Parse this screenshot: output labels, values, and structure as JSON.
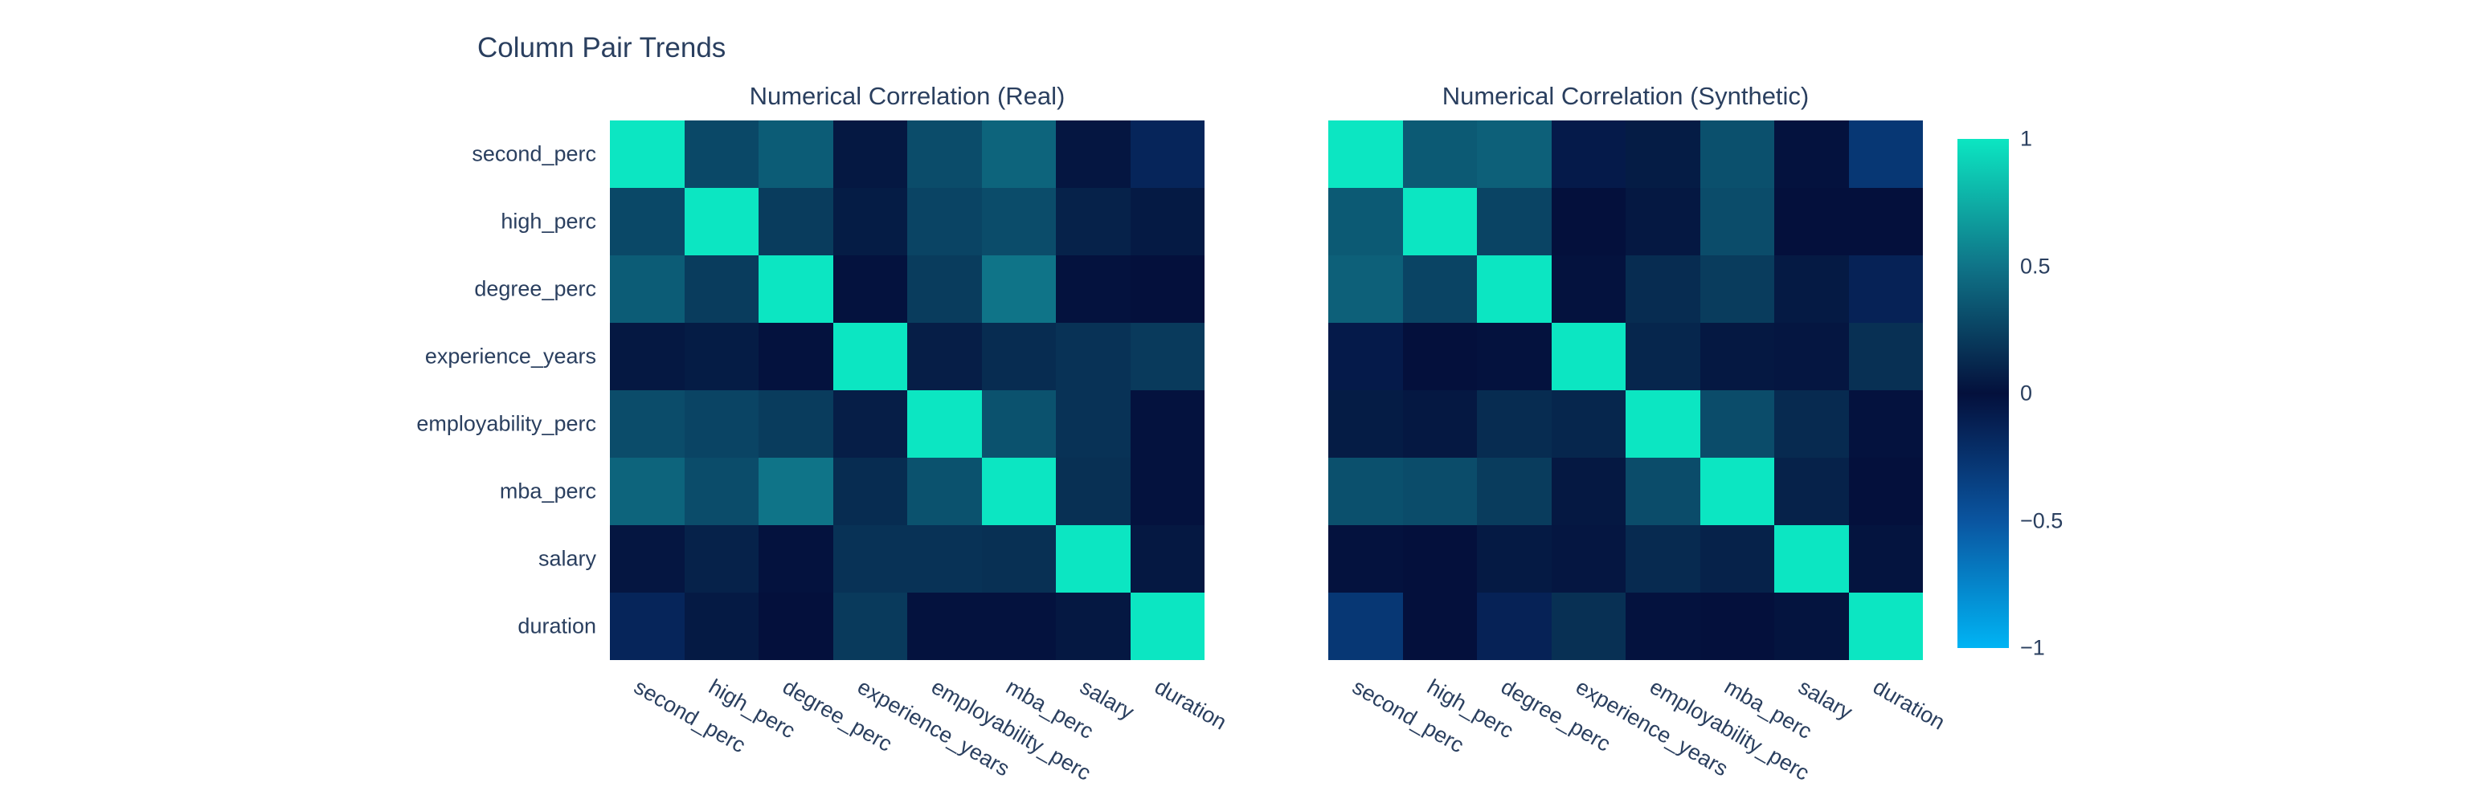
{
  "title": "Column Pair Trends",
  "colors": {
    "text": "#2a3f5f",
    "background": "#ffffff"
  },
  "chart_data": [
    {
      "type": "heatmap",
      "title": "Numerical Correlation (Real)",
      "x_categories": [
        "second_perc",
        "high_perc",
        "degree_perc",
        "experience_years",
        "employability_perc",
        "mba_perc",
        "salary",
        "duration"
      ],
      "y_categories": [
        "second_perc",
        "high_perc",
        "degree_perc",
        "experience_years",
        "employability_perc",
        "mba_perc",
        "salary",
        "duration"
      ],
      "zmin": -1,
      "zmax": 1,
      "values": [
        [
          1.0,
          0.28,
          0.38,
          0.04,
          0.3,
          0.42,
          0.03,
          -0.15
        ],
        [
          0.28,
          1.0,
          0.22,
          0.06,
          0.26,
          0.3,
          0.09,
          0.05
        ],
        [
          0.38,
          0.22,
          1.0,
          0.01,
          0.22,
          0.5,
          0.01,
          0.0
        ],
        [
          0.04,
          0.06,
          0.01,
          1.0,
          0.07,
          0.14,
          0.17,
          0.21
        ],
        [
          0.3,
          0.26,
          0.22,
          0.07,
          1.0,
          0.33,
          0.17,
          0.01
        ],
        [
          0.42,
          0.3,
          0.5,
          0.14,
          0.33,
          1.0,
          0.16,
          0.01
        ],
        [
          0.03,
          0.09,
          0.01,
          0.17,
          0.17,
          0.16,
          1.0,
          0.04
        ],
        [
          -0.15,
          0.05,
          0.0,
          0.21,
          0.01,
          0.01,
          0.04,
          1.0
        ]
      ]
    },
    {
      "type": "heatmap",
      "title": "Numerical Correlation (Synthetic)",
      "x_categories": [
        "second_perc",
        "high_perc",
        "degree_perc",
        "experience_years",
        "employability_perc",
        "mba_perc",
        "salary",
        "duration"
      ],
      "y_categories": [
        "second_perc",
        "high_perc",
        "degree_perc",
        "experience_years",
        "employability_perc",
        "mba_perc",
        "salary",
        "duration"
      ],
      "zmin": -1,
      "zmax": 1,
      "values": [
        [
          1.0,
          0.37,
          0.4,
          -0.07,
          0.06,
          0.32,
          0.01,
          -0.28
        ],
        [
          0.37,
          1.0,
          0.26,
          0.0,
          0.04,
          0.3,
          0.0,
          0.0
        ],
        [
          0.4,
          0.26,
          1.0,
          0.01,
          0.14,
          0.22,
          0.05,
          -0.13
        ],
        [
          -0.07,
          0.0,
          0.01,
          1.0,
          0.11,
          0.04,
          0.03,
          0.16
        ],
        [
          0.06,
          0.04,
          0.14,
          0.11,
          1.0,
          0.3,
          0.13,
          0.01
        ],
        [
          0.32,
          0.3,
          0.22,
          0.04,
          0.3,
          1.0,
          0.09,
          0.0
        ],
        [
          0.01,
          0.0,
          0.05,
          0.03,
          0.13,
          0.09,
          1.0,
          0.02
        ],
        [
          -0.28,
          0.0,
          -0.13,
          0.16,
          0.01,
          0.0,
          0.02,
          1.0
        ]
      ]
    }
  ],
  "colorbar": {
    "ticks": [
      {
        "label": "1",
        "value": 1
      },
      {
        "label": "0.5",
        "value": 0.5
      },
      {
        "label": "0",
        "value": 0
      },
      {
        "label": "−0.5",
        "value": -0.5
      },
      {
        "label": "−1",
        "value": -1
      }
    ],
    "colorscale": [
      {
        "value": -1,
        "color": "#00b4f4"
      },
      {
        "value": -0.5,
        "color": "#0a55a0"
      },
      {
        "value": 0,
        "color": "#04103c"
      },
      {
        "value": 0.5,
        "color": "#0f7488"
      },
      {
        "value": 1,
        "color": "#0ce6c2"
      }
    ]
  }
}
